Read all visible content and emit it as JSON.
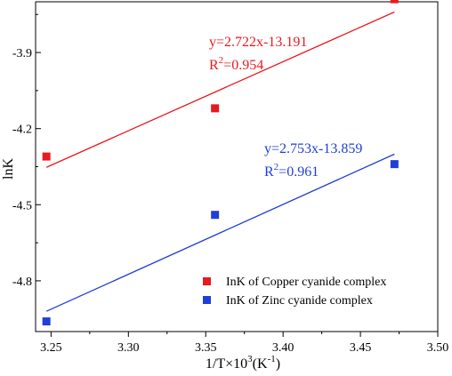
{
  "chart_data": {
    "type": "scatter",
    "xlabel": "1/T×10",
    "xlabel_sup": "3",
    "xlabel_unit": "(K",
    "xlabel_unit_sup": "-1",
    "xlabel_tail": ")",
    "ylabel": "lnK",
    "xlim": [
      3.24,
      3.5
    ],
    "ylim": [
      -5.0,
      -3.7
    ],
    "xticks": [
      3.25,
      3.3,
      3.35,
      3.4,
      3.45,
      3.5
    ],
    "xtick_labels": [
      "3.25",
      "3.30",
      "3.35",
      "3.40",
      "3.45",
      "3.50"
    ],
    "yticks": [
      -4.8,
      -4.5,
      -4.2,
      -3.9
    ],
    "ytick_labels": [
      "-4.8",
      "-4.5",
      "-4.2",
      "-3.9"
    ],
    "grid": false,
    "legend_position": "bottom-right",
    "series": [
      {
        "name": "InK of Copper cyanide complex",
        "color": "#e8191f",
        "marker": "square",
        "x": [
          3.247,
          3.356,
          3.472
        ],
        "y": [
          -4.31,
          -4.12,
          -3.69
        ],
        "fit": {
          "slope": 2.722,
          "intercept": -13.191,
          "x_range": [
            3.247,
            3.472
          ]
        },
        "equation": "y=2.722x-13.191",
        "r2_label": "R",
        "r2_sup": "2",
        "r2_value": "=0.954"
      },
      {
        "name": "InK of Zinc cyanide complex",
        "color": "#1f3fd6",
        "marker": "square",
        "x": [
          3.247,
          3.356,
          3.472
        ],
        "y": [
          -4.96,
          -4.54,
          -4.34
        ],
        "fit": {
          "slope": 2.753,
          "intercept": -13.859,
          "x_range": [
            3.247,
            3.472
          ]
        },
        "equation": "y=2.753x-13.859",
        "r2_label": "R",
        "r2_sup": "2",
        "r2_value": "=0.961"
      }
    ]
  }
}
